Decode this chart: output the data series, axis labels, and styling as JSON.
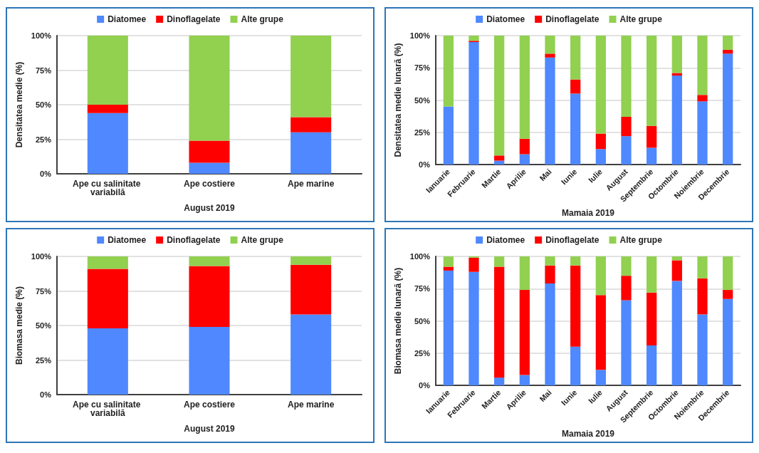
{
  "chart_data": [
    {
      "type": "bar",
      "stacked": true,
      "xlabel": "August 2019",
      "ylabel": "Densitatea medie (%)",
      "categories": [
        "Ape cu salinitate variabilă",
        "Ape costiere",
        "Ape marine"
      ],
      "series": [
        {
          "name": "Diatomee",
          "color": "#4f88ff",
          "values": [
            44,
            8,
            30
          ]
        },
        {
          "name": "Dinoflagelate",
          "color": "#ff0000",
          "values": [
            6,
            16,
            11
          ]
        },
        {
          "name": "Alte grupe",
          "color": "#92d050",
          "values": [
            50,
            76,
            59
          ]
        }
      ],
      "ylim": [
        0,
        100
      ],
      "yticks": [
        {
          "value": 0,
          "label": "0%"
        },
        {
          "value": 25,
          "label": "25%"
        },
        {
          "value": 50,
          "label": "50%"
        },
        {
          "value": 75,
          "label": "75%"
        },
        {
          "value": 100,
          "label": "100%"
        }
      ],
      "grid": "y",
      "legend": "top"
    },
    {
      "type": "bar",
      "stacked": true,
      "xlabel": "Mamaia 2019",
      "ylabel": "Densitatea medie lunară (%)",
      "categories": [
        "Ianuarie",
        "Februarie",
        "Martie",
        "Aprilie",
        "Mai",
        "Iunie",
        "Iulie",
        "August",
        "Septembrie",
        "Octombrie",
        "Noiembrie",
        "Decembrie"
      ],
      "series": [
        {
          "name": "Diatomee",
          "color": "#4f88ff",
          "values": [
            45,
            95,
            3,
            8,
            83,
            55,
            12,
            22,
            13,
            69,
            49,
            86
          ]
        },
        {
          "name": "Dinoflagelate",
          "color": "#ff0000",
          "values": [
            0,
            1,
            4,
            12,
            3,
            11,
            12,
            15,
            17,
            2,
            5,
            3
          ]
        },
        {
          "name": "Alte grupe",
          "color": "#92d050",
          "values": [
            55,
            4,
            93,
            80,
            14,
            34,
            76,
            63,
            70,
            29,
            46,
            11
          ]
        }
      ],
      "ylim": [
        0,
        100
      ],
      "yticks": [
        {
          "value": 0,
          "label": "0%"
        },
        {
          "value": 25,
          "label": "25%"
        },
        {
          "value": 50,
          "label": "50%"
        },
        {
          "value": 75,
          "label": "75%"
        },
        {
          "value": 100,
          "label": "100%"
        }
      ],
      "grid": "y",
      "legend": "top"
    },
    {
      "type": "bar",
      "stacked": true,
      "xlabel": "August 2019",
      "ylabel": "Biomasa medie (%)",
      "categories": [
        "Ape cu salinitate variabilă",
        "Ape costiere",
        "Ape marine"
      ],
      "series": [
        {
          "name": "Diatomee",
          "color": "#4f88ff",
          "values": [
            48,
            49,
            58
          ]
        },
        {
          "name": "Dinoflagelate",
          "color": "#ff0000",
          "values": [
            43,
            44,
            36
          ]
        },
        {
          "name": "Alte grupe",
          "color": "#92d050",
          "values": [
            9,
            7,
            6
          ]
        }
      ],
      "ylim": [
        0,
        100
      ],
      "yticks": [
        {
          "value": 0,
          "label": "0%"
        },
        {
          "value": 25,
          "label": "25%"
        },
        {
          "value": 50,
          "label": "50%"
        },
        {
          "value": 75,
          "label": "75%"
        },
        {
          "value": 100,
          "label": "100%"
        }
      ],
      "grid": "y",
      "legend": "top"
    },
    {
      "type": "bar",
      "stacked": true,
      "xlabel": "Mamaia 2019",
      "ylabel": "Biomasa medie lunară (%)",
      "categories": [
        "Ianuarie",
        "Februarie",
        "Martie",
        "Aprilie",
        "Mai",
        "Iunie",
        "Iulie",
        "August",
        "Septembrie",
        "Octombrie",
        "Noiembrie",
        "Decembrie"
      ],
      "series": [
        {
          "name": "Diatomee",
          "color": "#4f88ff",
          "values": [
            89,
            88,
            6,
            8,
            79,
            30,
            12,
            66,
            31,
            81,
            55,
            67
          ]
        },
        {
          "name": "Dinoflagelate",
          "color": "#ff0000",
          "values": [
            3,
            11,
            86,
            66,
            14,
            63,
            58,
            19,
            41,
            16,
            28,
            7
          ]
        },
        {
          "name": "Alte grupe",
          "color": "#92d050",
          "values": [
            8,
            1,
            8,
            26,
            7,
            7,
            30,
            15,
            28,
            3,
            17,
            26
          ]
        }
      ],
      "ylim": [
        0,
        100
      ],
      "yticks": [
        {
          "value": 0,
          "label": "0%"
        },
        {
          "value": 25,
          "label": "25%"
        },
        {
          "value": 50,
          "label": "50%"
        },
        {
          "value": 75,
          "label": "75%"
        },
        {
          "value": 100,
          "label": "100%"
        }
      ],
      "grid": "y",
      "legend": "top"
    }
  ]
}
